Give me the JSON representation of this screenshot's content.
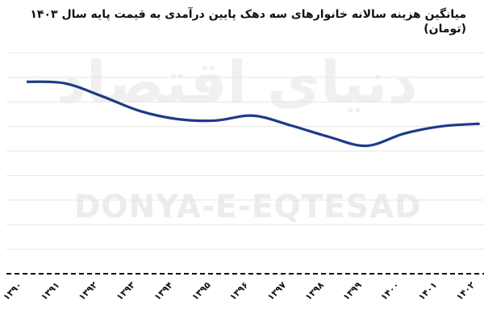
{
  "chart_data": {
    "type": "line",
    "title": "میانگین هزینه سالانه خانوارهای سه دهک پایین درآمدی به قیمت پایه سال ۱۴۰۳ (تومان)",
    "xlabel": "",
    "ylabel": "",
    "categories": [
      "۱۳۹۰",
      "۱۳۹۱",
      "۱۳۹۲",
      "۱۳۹۳",
      "۱۳۹۴",
      "۱۳۹۵",
      "۱۳۹۶",
      "۱۳۹۷",
      "۱۳۹۸",
      "۱۳۹۹",
      "۱۴۰۰",
      "۱۴۰۱",
      "۱۴۰۲"
    ],
    "series": [
      {
        "values": [
          7.82,
          7.76,
          7.23,
          6.63,
          6.3,
          6.24,
          6.44,
          6.04,
          5.58,
          5.21,
          5.71,
          6.01,
          6.11
        ],
        "color": "#1f3a8a"
      }
    ],
    "ylim": [
      0,
      9
    ],
    "y_tick_labels_shown": false,
    "grid": true,
    "smooth": true
  },
  "watermark": {
    "en": "DONYA-E-EQTESAD",
    "fa": "دنیای اقتصاد"
  }
}
